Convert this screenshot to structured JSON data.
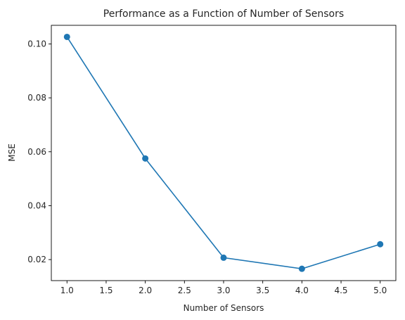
{
  "chart_data": {
    "type": "line",
    "title": "Performance as a Function of Number of Sensors",
    "xlabel": "Number of Sensors",
    "ylabel": "MSE",
    "x": [
      1,
      2,
      3,
      4,
      5
    ],
    "series": [
      {
        "values": [
          0.1026,
          0.0575,
          0.0207,
          0.0166,
          0.0257
        ],
        "color": "#1f77b4",
        "marker": "circle"
      }
    ],
    "xlim": [
      0.8,
      5.2
    ],
    "ylim": [
      0.0122,
      0.1069
    ],
    "xticks": [
      1.0,
      1.5,
      2.0,
      2.5,
      3.0,
      3.5,
      4.0,
      4.5,
      5.0
    ],
    "xtick_labels": [
      "1.0",
      "1.5",
      "2.0",
      "2.5",
      "3.0",
      "3.5",
      "4.0",
      "4.5",
      "5.0"
    ],
    "yticks": [
      0.02,
      0.04,
      0.06,
      0.08,
      0.1
    ],
    "ytick_labels": [
      "0.02",
      "0.04",
      "0.06",
      "0.08",
      "0.10"
    ],
    "grid": false,
    "legend": "none"
  }
}
